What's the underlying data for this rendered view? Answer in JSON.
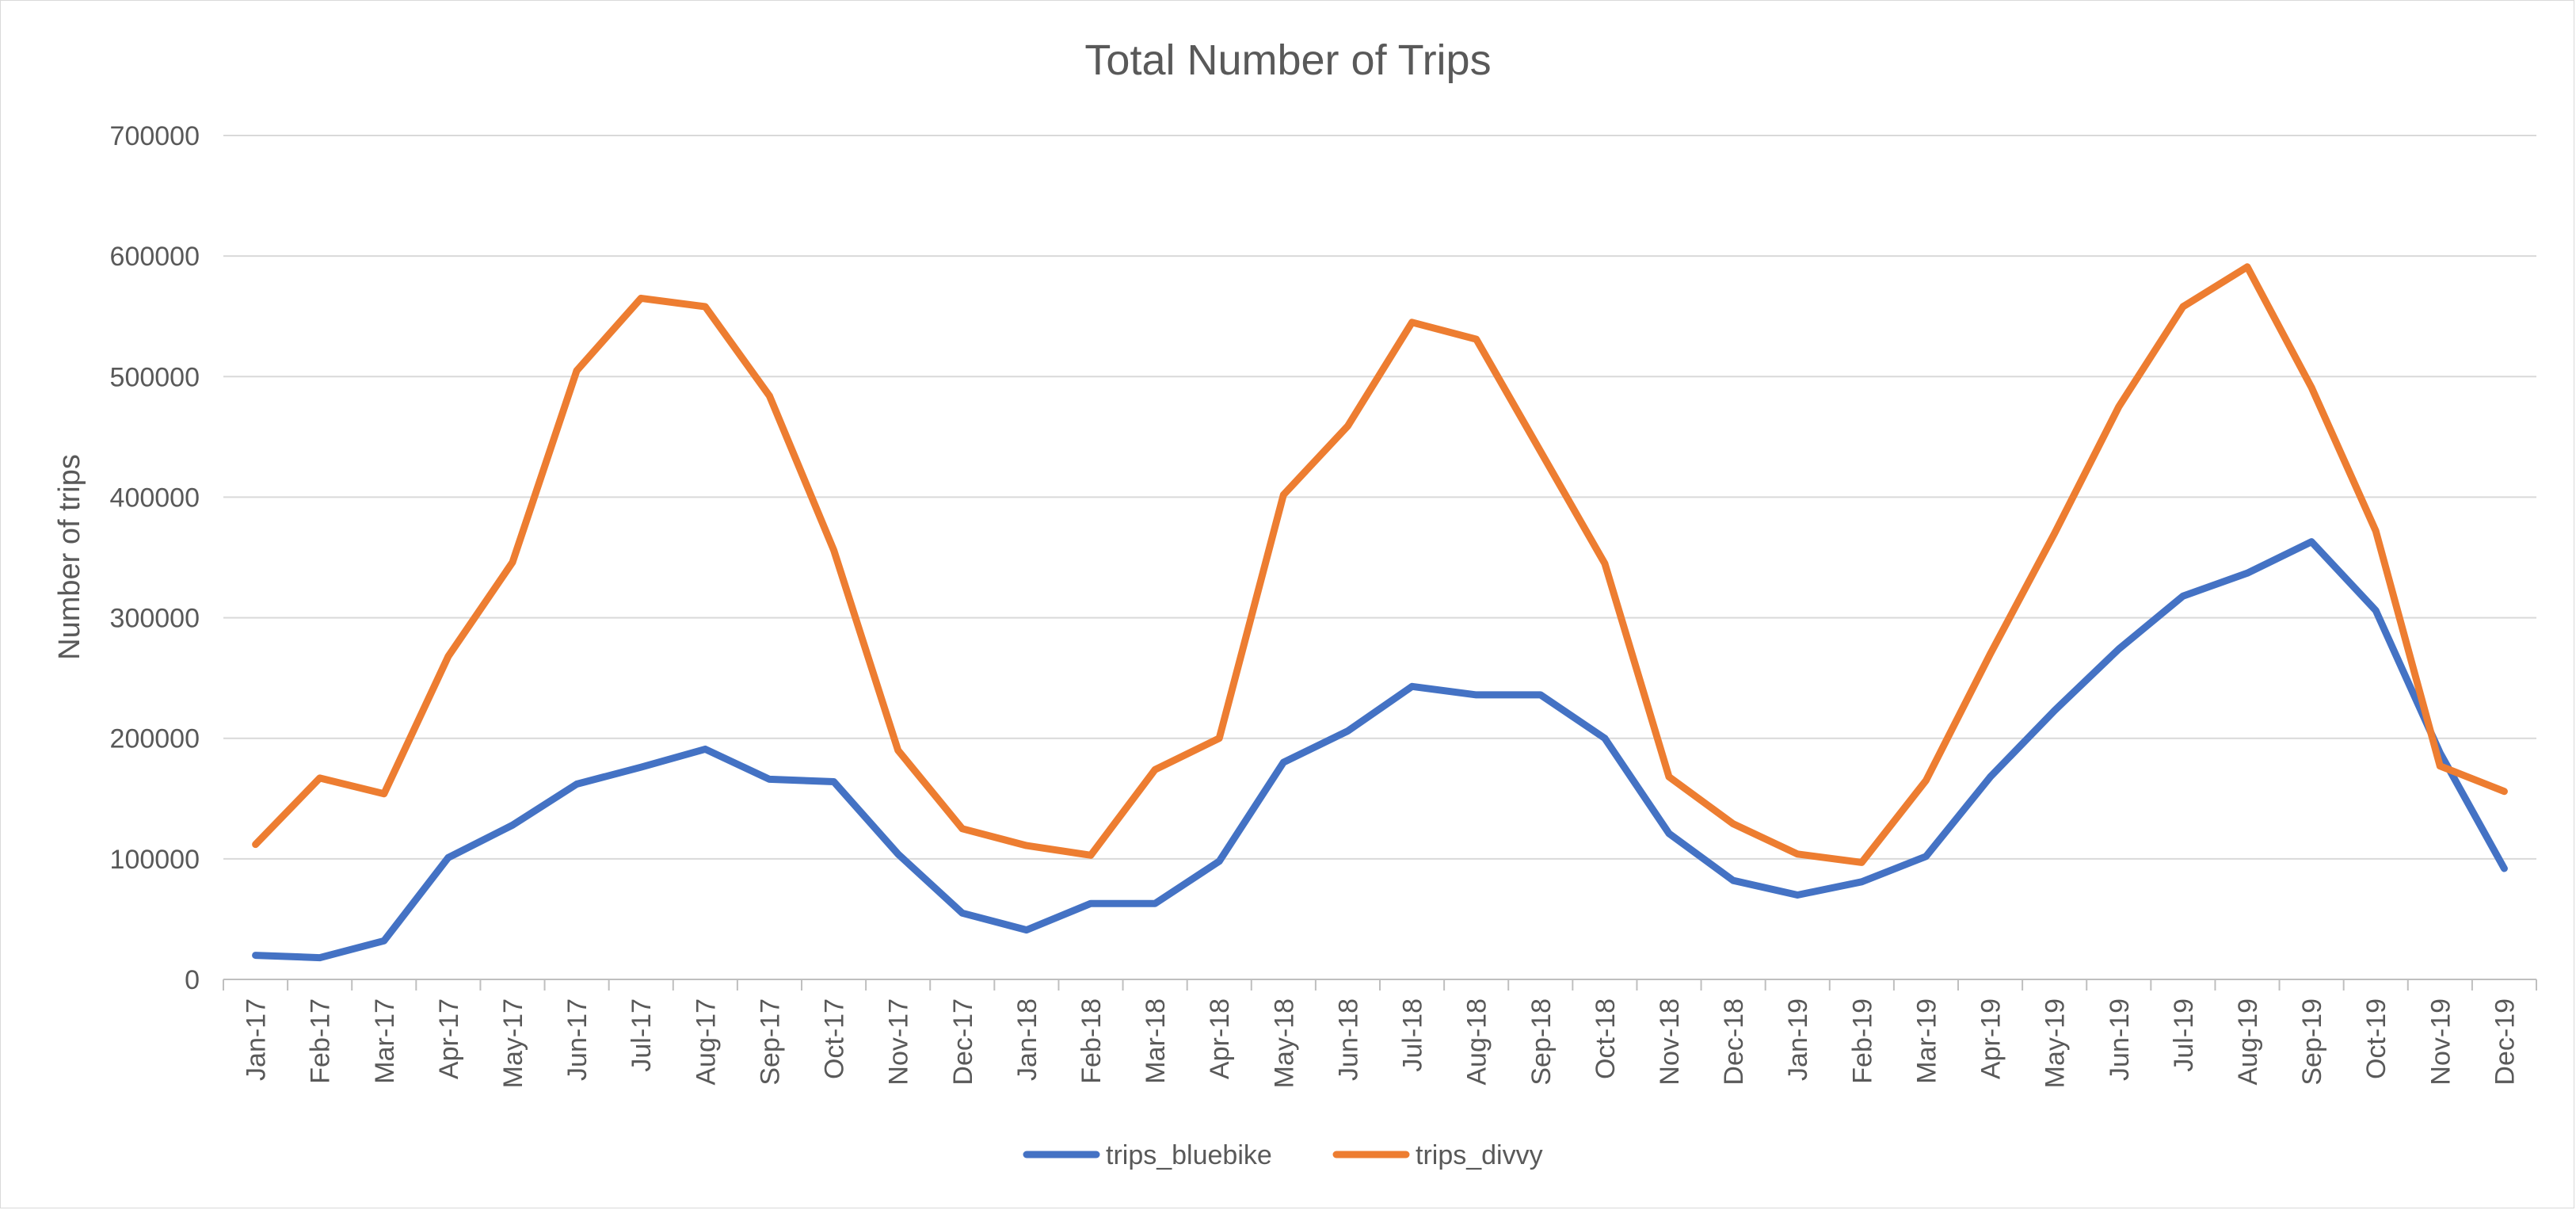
{
  "chart_data": {
    "type": "line",
    "title": "Total Number of Trips",
    "xlabel": "",
    "ylabel": "Number of trips",
    "ylim": [
      0,
      700000
    ],
    "yticks": [
      0,
      100000,
      200000,
      300000,
      400000,
      500000,
      600000,
      700000
    ],
    "grid": true,
    "legend_position": "bottom",
    "categories": [
      "Jan-17",
      "Feb-17",
      "Mar-17",
      "Apr-17",
      "May-17",
      "Jun-17",
      "Jul-17",
      "Aug-17",
      "Sep-17",
      "Oct-17",
      "Nov-17",
      "Dec-17",
      "Jan-18",
      "Feb-18",
      "Mar-18",
      "Apr-18",
      "May-18",
      "Jun-18",
      "Jul-18",
      "Aug-18",
      "Sep-18",
      "Oct-18",
      "Nov-18",
      "Dec-18",
      "Jan-19",
      "Feb-19",
      "Mar-19",
      "Apr-19",
      "May-19",
      "Jun-19",
      "Jul-19",
      "Aug-19",
      "Sep-19",
      "Oct-19",
      "Nov-19",
      "Dec-19"
    ],
    "series": [
      {
        "name": "trips_bluebike",
        "color": "#4472c4",
        "values": [
          20000,
          18000,
          32000,
          101000,
          128000,
          162000,
          176000,
          191000,
          166000,
          164000,
          104000,
          55000,
          41000,
          63000,
          63000,
          98000,
          180000,
          206000,
          243000,
          236000,
          236000,
          200000,
          121000,
          82000,
          70000,
          81000,
          102000,
          168000,
          223000,
          274000,
          318000,
          337000,
          363000,
          306000,
          188000,
          92000
        ]
      },
      {
        "name": "trips_divvy",
        "color": "#ed7d31",
        "values": [
          112000,
          167000,
          154000,
          268000,
          346000,
          505000,
          565000,
          558000,
          484000,
          356000,
          190000,
          125000,
          111000,
          103000,
          174000,
          200000,
          402000,
          459000,
          545000,
          531000,
          438000,
          345000,
          168000,
          129000,
          104000,
          97000,
          165000,
          270000,
          370000,
          475000,
          558000,
          591000,
          491000,
          372000,
          177000,
          156000
        ]
      }
    ]
  }
}
